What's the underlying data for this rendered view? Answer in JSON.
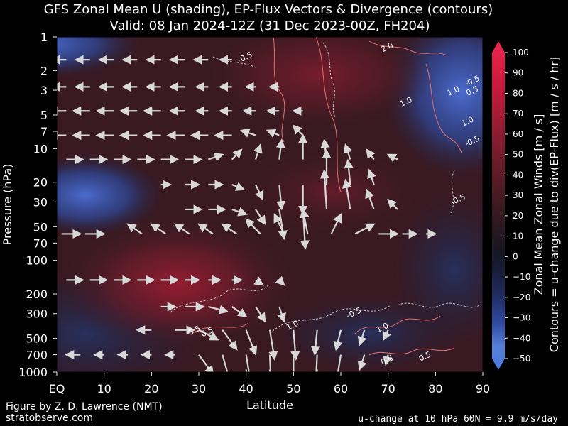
{
  "chart_data": {
    "type": "heatmap",
    "title": "GFS Zonal Mean U (shading), EP-Flux Vectors & Divergence (contours)",
    "subtitle": "Valid: 08 Jan 2024-12Z  (31 Dec 2023-00Z, FH204)",
    "xlabel": "Latitude",
    "ylabel": "Pressure (hPa)",
    "xlim": [
      0,
      90
    ],
    "ylim": [
      1000,
      1
    ],
    "y_scale": "log",
    "x_ticks": [
      "EQ",
      "10",
      "20",
      "30",
      "40",
      "50",
      "60",
      "70",
      "80",
      "90"
    ],
    "y_ticks": [
      "1",
      "2",
      "3",
      "5",
      "7",
      "10",
      "20",
      "30",
      "50",
      "70",
      "100",
      "200",
      "300",
      "500",
      "700",
      "1000"
    ],
    "colorbar": {
      "label_line1": "Zonal Mean Zonal Winds  [m / s]",
      "label_line2": "Contours = u-change due to div(EP-Flux) [m / s / hr]",
      "ticks": [
        "100",
        "90",
        "80",
        "70",
        "60",
        "50",
        "40",
        "30",
        "20",
        "10",
        "0",
        "−10",
        "−20",
        "−30",
        "−40",
        "−50"
      ],
      "min": -50,
      "max": 100,
      "colors": [
        "#4a78e0",
        "#5580d8",
        "#2f4aa0",
        "#22306a",
        "#1a2040",
        "#151622",
        "#2a1820",
        "#3d1a22",
        "#561b26",
        "#6e1c2a",
        "#8a1c30",
        "#a81c36",
        "#c41a3c",
        "#dd1e44",
        "#ea2a50"
      ]
    },
    "contour_labels": [
      {
        "text": "-0.5",
        "lat": 40,
        "p": 1.6
      },
      {
        "text": "2.0",
        "lat": 70,
        "p": 1.3
      },
      {
        "text": "1.0",
        "lat": 74,
        "p": 4.0
      },
      {
        "text": "1.0",
        "lat": 84,
        "p": 3.2
      },
      {
        "text": "1.0",
        "lat": 87,
        "p": 6.0
      },
      {
        "text": "-0.5",
        "lat": 88,
        "p": 2.6
      },
      {
        "text": "0.5",
        "lat": 88,
        "p": 3.2
      },
      {
        "text": "-0.5",
        "lat": 88,
        "p": 9.0
      },
      {
        "text": "-0.5",
        "lat": 85,
        "p": 30
      },
      {
        "text": "-0.5",
        "lat": 29,
        "p": 450
      },
      {
        "text": "0.5",
        "lat": 32,
        "p": 460
      },
      {
        "text": "1.0",
        "lat": 50,
        "p": 400
      },
      {
        "text": "-0.5",
        "lat": 63,
        "p": 310
      },
      {
        "text": "1.0",
        "lat": 69,
        "p": 420
      },
      {
        "text": "0.5",
        "lat": 70,
        "p": 820
      },
      {
        "text": "0.5",
        "lat": 78,
        "p": 760
      }
    ],
    "flux_vectors": [
      {
        "lat": 2,
        "p": 1.6,
        "dlat": -3,
        "dlnp": 0
      },
      {
        "lat": 7,
        "p": 1.6,
        "dlat": -3,
        "dlnp": 0
      },
      {
        "lat": 12,
        "p": 1.6,
        "dlat": -3,
        "dlnp": 0
      },
      {
        "lat": 17,
        "p": 1.6,
        "dlat": -3,
        "dlnp": 0
      },
      {
        "lat": 22,
        "p": 1.6,
        "dlat": -3,
        "dlnp": 0
      },
      {
        "lat": 27,
        "p": 1.6,
        "dlat": -3,
        "dlnp": 0
      },
      {
        "lat": 32,
        "p": 1.6,
        "dlat": -3,
        "dlnp": 0
      },
      {
        "lat": 37,
        "p": 1.6,
        "dlat": -2.5,
        "dlnp": 0
      },
      {
        "lat": 2,
        "p": 2.8,
        "dlat": -3,
        "dlnp": 0
      },
      {
        "lat": 7,
        "p": 2.8,
        "dlat": -3,
        "dlnp": 0
      },
      {
        "lat": 12,
        "p": 2.8,
        "dlat": -3,
        "dlnp": 0
      },
      {
        "lat": 17,
        "p": 2.8,
        "dlat": -3,
        "dlnp": 0
      },
      {
        "lat": 22,
        "p": 2.8,
        "dlat": -3,
        "dlnp": 0
      },
      {
        "lat": 27,
        "p": 2.8,
        "dlat": -3,
        "dlnp": 0
      },
      {
        "lat": 32,
        "p": 2.8,
        "dlat": -2.5,
        "dlnp": 0
      },
      {
        "lat": 37,
        "p": 2.8,
        "dlat": -2.5,
        "dlnp": 0
      },
      {
        "lat": 42,
        "p": 2.8,
        "dlat": -2,
        "dlnp": 0
      },
      {
        "lat": 47,
        "p": 2.8,
        "dlat": -2,
        "dlnp": 0
      },
      {
        "lat": 2,
        "p": 4.6,
        "dlat": -3.5,
        "dlnp": 0
      },
      {
        "lat": 7,
        "p": 4.6,
        "dlat": -3.5,
        "dlnp": 0
      },
      {
        "lat": 12,
        "p": 4.6,
        "dlat": -3.5,
        "dlnp": 0
      },
      {
        "lat": 17,
        "p": 4.6,
        "dlat": -3.5,
        "dlnp": 0
      },
      {
        "lat": 22,
        "p": 4.6,
        "dlat": -3.5,
        "dlnp": 0
      },
      {
        "lat": 27,
        "p": 4.6,
        "dlat": -3,
        "dlnp": 0
      },
      {
        "lat": 32,
        "p": 4.6,
        "dlat": -2.5,
        "dlnp": 0
      },
      {
        "lat": 37,
        "p": 4.6,
        "dlat": -2.5,
        "dlnp": 0
      },
      {
        "lat": 42,
        "p": 4.6,
        "dlat": -2.5,
        "dlnp": 0
      },
      {
        "lat": 47,
        "p": 4.6,
        "dlat": -2.5,
        "dlnp": 0
      },
      {
        "lat": 52,
        "p": 4.6,
        "dlat": -2,
        "dlnp": 0
      },
      {
        "lat": 2,
        "p": 7.6,
        "dlat": -3.5,
        "dlnp": 0
      },
      {
        "lat": 7,
        "p": 7.6,
        "dlat": -3.5,
        "dlnp": 0
      },
      {
        "lat": 12,
        "p": 7.6,
        "dlat": -3.5,
        "dlnp": 0
      },
      {
        "lat": 17,
        "p": 7.6,
        "dlat": -3.5,
        "dlnp": 0
      },
      {
        "lat": 22,
        "p": 7.6,
        "dlat": -3.5,
        "dlnp": 0
      },
      {
        "lat": 27,
        "p": 7.6,
        "dlat": -3.5,
        "dlnp": 0
      },
      {
        "lat": 32,
        "p": 7.6,
        "dlat": -3.5,
        "dlnp": 0
      },
      {
        "lat": 37,
        "p": 7.6,
        "dlat": -3.5,
        "dlnp": 0
      },
      {
        "lat": 42,
        "p": 7.6,
        "dlat": -3,
        "dlnp": 0.1
      },
      {
        "lat": 47,
        "p": 7.6,
        "dlat": -2.5,
        "dlnp": 0.1
      },
      {
        "lat": 52,
        "p": 7.6,
        "dlat": -2,
        "dlnp": 0.2
      },
      {
        "lat": 2,
        "p": 12.5,
        "dlat": 3.5,
        "dlnp": 0
      },
      {
        "lat": 7,
        "p": 12.5,
        "dlat": 3.5,
        "dlnp": 0
      },
      {
        "lat": 12,
        "p": 12.5,
        "dlat": 3.5,
        "dlnp": 0
      },
      {
        "lat": 17,
        "p": 12.5,
        "dlat": 3.5,
        "dlnp": 0
      },
      {
        "lat": 22,
        "p": 12.5,
        "dlat": 3.5,
        "dlnp": 0
      },
      {
        "lat": 27,
        "p": 12.5,
        "dlat": 3.5,
        "dlnp": 0
      },
      {
        "lat": 32,
        "p": 12.5,
        "dlat": 3,
        "dlnp": 0.1
      },
      {
        "lat": 37,
        "p": 12.5,
        "dlat": 2,
        "dlnp": 0.2
      },
      {
        "lat": 42,
        "p": 12.5,
        "dlat": 1,
        "dlnp": 0.3
      },
      {
        "lat": 47,
        "p": 12.5,
        "dlat": 0.5,
        "dlnp": 0.4
      },
      {
        "lat": 52,
        "p": 12.5,
        "dlat": 0,
        "dlnp": 0.5
      },
      {
        "lat": 57,
        "p": 12.5,
        "dlat": -0.5,
        "dlnp": 0.4
      },
      {
        "lat": 62,
        "p": 12.5,
        "dlat": -1,
        "dlnp": 0.3
      },
      {
        "lat": 67,
        "p": 12.5,
        "dlat": -1.5,
        "dlnp": 0.2
      },
      {
        "lat": 72,
        "p": 12.5,
        "dlat": -2,
        "dlnp": 0.1
      },
      {
        "lat": 22,
        "p": 21,
        "dlat": 2,
        "dlnp": 0
      },
      {
        "lat": 27,
        "p": 21,
        "dlat": 3,
        "dlnp": 0
      },
      {
        "lat": 32,
        "p": 21,
        "dlat": 3,
        "dlnp": 0
      },
      {
        "lat": 37,
        "p": 21,
        "dlat": 2.5,
        "dlnp": -0.1
      },
      {
        "lat": 42,
        "p": 21,
        "dlat": 1.5,
        "dlnp": -0.3
      },
      {
        "lat": 47,
        "p": 21,
        "dlat": 0.5,
        "dlnp": -0.5
      },
      {
        "lat": 52,
        "p": 21,
        "dlat": 0,
        "dlnp": -0.6
      },
      {
        "lat": 57,
        "p": 21,
        "dlat": 0,
        "dlnp": 0.7
      },
      {
        "lat": 62,
        "p": 21,
        "dlat": -0.5,
        "dlnp": 0.5
      },
      {
        "lat": 67,
        "p": 21,
        "dlat": -1,
        "dlnp": 0.3
      },
      {
        "lat": 27,
        "p": 35,
        "dlat": 3.5,
        "dlnp": 0
      },
      {
        "lat": 32,
        "p": 35,
        "dlat": 3.5,
        "dlnp": 0
      },
      {
        "lat": 37,
        "p": 35,
        "dlat": 3,
        "dlnp": -0.1
      },
      {
        "lat": 42,
        "p": 35,
        "dlat": 2,
        "dlnp": -0.3
      },
      {
        "lat": 47,
        "p": 35,
        "dlat": 1,
        "dlnp": -0.6
      },
      {
        "lat": 52,
        "p": 35,
        "dlat": 0.5,
        "dlnp": -0.8
      },
      {
        "lat": 57,
        "p": 35,
        "dlat": -0.5,
        "dlnp": 0.8
      },
      {
        "lat": 62,
        "p": 35,
        "dlat": -1,
        "dlnp": 0.6
      },
      {
        "lat": 67,
        "p": 35,
        "dlat": -1.5,
        "dlnp": 0.4
      },
      {
        "lat": 72,
        "p": 35,
        "dlat": -2,
        "dlnp": 0.2
      },
      {
        "lat": 1,
        "p": 58,
        "dlat": 4,
        "dlnp": 0
      },
      {
        "lat": 6,
        "p": 58,
        "dlat": 4,
        "dlnp": 0
      },
      {
        "lat": 18,
        "p": 58,
        "dlat": -3,
        "dlnp": 0.2
      },
      {
        "lat": 23,
        "p": 58,
        "dlat": -3,
        "dlnp": 0.2
      },
      {
        "lat": 28,
        "p": 58,
        "dlat": -3,
        "dlnp": 0.2
      },
      {
        "lat": 33,
        "p": 58,
        "dlat": -3,
        "dlnp": 0.2
      },
      {
        "lat": 38,
        "p": 58,
        "dlat": -3,
        "dlnp": 0.2
      },
      {
        "lat": 43,
        "p": 58,
        "dlat": -3,
        "dlnp": 0.3
      },
      {
        "lat": 48,
        "p": 58,
        "dlat": -2,
        "dlnp": 0.4
      },
      {
        "lat": 53,
        "p": 58,
        "dlat": -1,
        "dlnp": 0.5
      },
      {
        "lat": 58,
        "p": 58,
        "dlat": 2,
        "dlnp": 0.4
      },
      {
        "lat": 63,
        "p": 58,
        "dlat": 4,
        "dlnp": 0.2
      },
      {
        "lat": 68,
        "p": 58,
        "dlat": 4,
        "dlnp": 0
      },
      {
        "lat": 73,
        "p": 58,
        "dlat": 3,
        "dlnp": 0
      },
      {
        "lat": 78,
        "p": 58,
        "dlat": 2,
        "dlnp": 0
      },
      {
        "lat": 2,
        "p": 150,
        "dlat": 3.5,
        "dlnp": 0
      },
      {
        "lat": 7,
        "p": 150,
        "dlat": 3.5,
        "dlnp": 0
      },
      {
        "lat": 12,
        "p": 150,
        "dlat": 3.5,
        "dlnp": 0
      },
      {
        "lat": 17,
        "p": 150,
        "dlat": 3.5,
        "dlnp": 0
      },
      {
        "lat": 22,
        "p": 150,
        "dlat": 3.5,
        "dlnp": 0
      },
      {
        "lat": 27,
        "p": 150,
        "dlat": 3,
        "dlnp": 0
      },
      {
        "lat": 32,
        "p": 150,
        "dlat": 2.5,
        "dlnp": 0
      },
      {
        "lat": 37,
        "p": 150,
        "dlat": 2,
        "dlnp": 0
      },
      {
        "lat": 42,
        "p": 150,
        "dlat": 1.5,
        "dlnp": -0.1
      },
      {
        "lat": 47,
        "p": 150,
        "dlat": 1,
        "dlnp": -0.1
      },
      {
        "lat": 22,
        "p": 260,
        "dlat": 3,
        "dlnp": 0
      },
      {
        "lat": 27,
        "p": 260,
        "dlat": 4,
        "dlnp": 0
      },
      {
        "lat": 32,
        "p": 260,
        "dlat": 4,
        "dlnp": -0.1
      },
      {
        "lat": 37,
        "p": 260,
        "dlat": 3,
        "dlnp": -0.2
      },
      {
        "lat": 42,
        "p": 260,
        "dlat": 2,
        "dlnp": -0.3
      },
      {
        "lat": 47,
        "p": 260,
        "dlat": 1,
        "dlnp": -0.3
      },
      {
        "lat": 20,
        "p": 420,
        "dlat": -3,
        "dlnp": 0
      },
      {
        "lat": 25,
        "p": 420,
        "dlat": 4,
        "dlnp": 0
      },
      {
        "lat": 30,
        "p": 420,
        "dlat": 4,
        "dlnp": -0.2
      },
      {
        "lat": 35,
        "p": 420,
        "dlat": 3,
        "dlnp": -0.4
      },
      {
        "lat": 40,
        "p": 420,
        "dlat": 2,
        "dlnp": -0.5
      },
      {
        "lat": 45,
        "p": 420,
        "dlat": 1,
        "dlnp": -0.6
      },
      {
        "lat": 50,
        "p": 420,
        "dlat": 0.5,
        "dlnp": -0.6
      },
      {
        "lat": 55,
        "p": 420,
        "dlat": -0.5,
        "dlnp": -0.5
      },
      {
        "lat": 60,
        "p": 420,
        "dlat": -1,
        "dlnp": -0.4
      },
      {
        "lat": 65,
        "p": 420,
        "dlat": -1,
        "dlnp": -0.3
      },
      {
        "lat": 70,
        "p": 420,
        "dlat": -1,
        "dlnp": -0.2
      },
      {
        "lat": 5,
        "p": 700,
        "dlat": -3,
        "dlnp": 0
      },
      {
        "lat": 10,
        "p": 700,
        "dlat": -2,
        "dlnp": 0
      },
      {
        "lat": 15,
        "p": 700,
        "dlat": -2,
        "dlnp": 0
      },
      {
        "lat": 20,
        "p": 700,
        "dlat": -2,
        "dlnp": 0
      },
      {
        "lat": 25,
        "p": 700,
        "dlat": -2,
        "dlnp": 0
      },
      {
        "lat": 30,
        "p": 700,
        "dlat": 3,
        "dlnp": -0.4
      },
      {
        "lat": 35,
        "p": 700,
        "dlat": 2,
        "dlnp": -0.7
      },
      {
        "lat": 40,
        "p": 700,
        "dlat": 1.5,
        "dlnp": -0.9
      },
      {
        "lat": 45,
        "p": 700,
        "dlat": 0.5,
        "dlnp": -1.1
      },
      {
        "lat": 50,
        "p": 700,
        "dlat": 0,
        "dlnp": -1.1
      },
      {
        "lat": 55,
        "p": 700,
        "dlat": -0.5,
        "dlnp": -1.0
      },
      {
        "lat": 60,
        "p": 700,
        "dlat": -1,
        "dlnp": -0.6
      },
      {
        "lat": 65,
        "p": 700,
        "dlat": -1,
        "dlnp": -0.3
      },
      {
        "lat": 70,
        "p": 700,
        "dlat": -0.5,
        "dlnp": -0.2
      },
      {
        "lat": 40,
        "p": 950,
        "dlat": 1,
        "dlnp": -0.8
      },
      {
        "lat": 45,
        "p": 950,
        "dlat": 0.5,
        "dlnp": -1.0
      },
      {
        "lat": 50,
        "p": 950,
        "dlat": 0,
        "dlnp": -1.0
      },
      {
        "lat": 55,
        "p": 950,
        "dlat": -0.5,
        "dlnp": -0.9
      }
    ]
  },
  "footer": {
    "credit": "Figure by Z. D. Lawrence (NMT)",
    "site": "stratobserve.com",
    "stat": "u-change at 10 hPa 60N =  9.9 m/s/day"
  }
}
